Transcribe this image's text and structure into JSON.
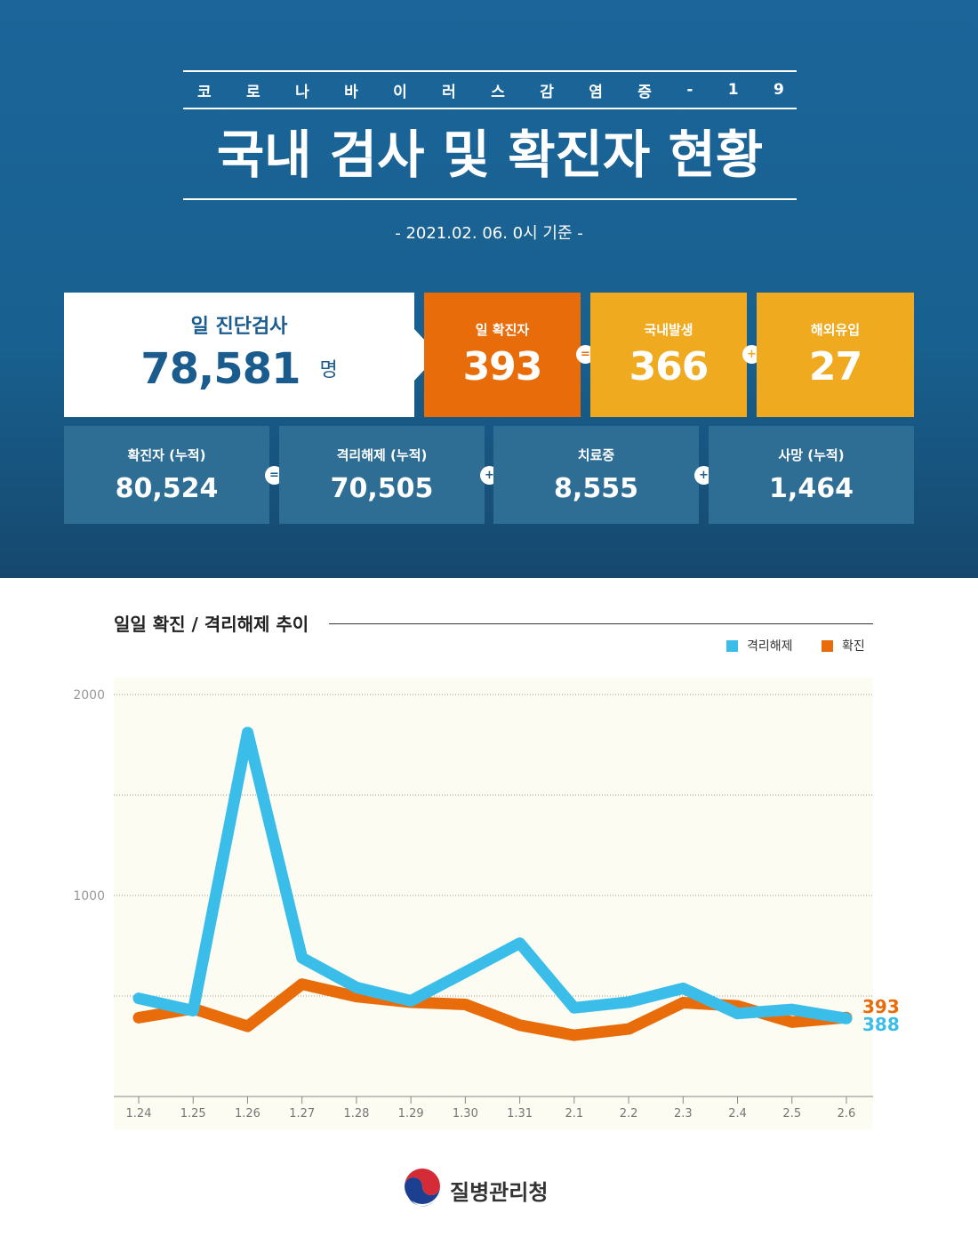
{
  "header": {
    "kicker_chars": [
      "코",
      "로",
      "나",
      "바",
      "이",
      "러",
      "스",
      "감",
      "염",
      "증",
      "-",
      "1",
      "9"
    ],
    "title": "국내 검사 및 확진자 현황",
    "date": "- 2021.02. 06. 0시 기준 -"
  },
  "summary": {
    "tests_label": "일 진단검사",
    "tests_value": "78,581",
    "tests_unit": "명",
    "daily_label": "일 확진자",
    "daily_value": "393",
    "domestic_label": "국내발생",
    "domestic_value": "366",
    "overseas_label": "해외유입",
    "overseas_value": "27",
    "op_equals": "=",
    "op_plus": "+"
  },
  "totals": [
    {
      "label": "확진자 (누적)",
      "value": "80,524"
    },
    {
      "label": "격리해제 (누적)",
      "value": "70,505"
    },
    {
      "label": "치료중",
      "value": "8,555"
    },
    {
      "label": "사망 (누적)",
      "value": "1,464"
    }
  ],
  "colors": {
    "header_blue": "#1b659a",
    "orange": "#e96c0b",
    "yellow": "#efaa1f",
    "stat_blue": "#2f6e94",
    "release_line": "#3bbdea",
    "confirmed_line": "#e96c0b",
    "plot_bg": "#fcfcf2"
  },
  "chart_data": {
    "type": "line",
    "title": "일일 확진 / 격리해제 추이",
    "categories": [
      "1.24",
      "1.25",
      "1.26",
      "1.27",
      "1.28",
      "1.29",
      "1.30",
      "1.31",
      "2.1",
      "2.2",
      "2.3",
      "2.4",
      "2.5",
      "2.6"
    ],
    "series": [
      {
        "name": "격리해제",
        "color": "#3bbdea",
        "values": [
          488,
          427,
          1811,
          690,
          543,
          476,
          619,
          763,
          441,
          470,
          538,
          413,
          433,
          388
        ]
      },
      {
        "name": "확진",
        "color": "#e96c0b",
        "values": [
          392,
          437,
          349,
          559,
          497,
          469,
          458,
          355,
          305,
          336,
          467,
          451,
          370,
          393
        ]
      }
    ],
    "end_labels": [
      "393",
      "388"
    ],
    "yticks": [
      "2000",
      "1000"
    ],
    "ylim": [
      0,
      2000
    ],
    "grid": true,
    "legend": "top-right"
  },
  "footer": {
    "org_name": "질병관리청",
    "logo_icon": "taegeuk-icon"
  }
}
